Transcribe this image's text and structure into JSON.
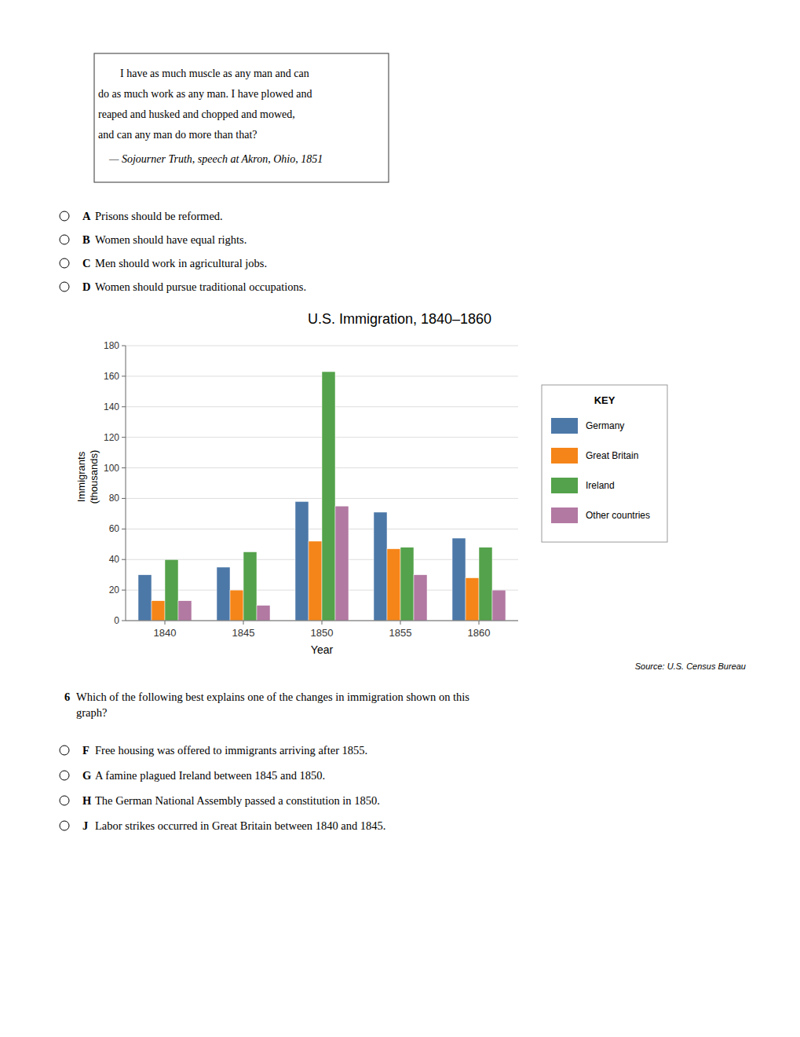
{
  "quote_lines": [
    "        I have as much muscle as any man and can",
    "do as much work as any man. I have plowed and",
    "reaped and husked and chopped and mowed,",
    "and can any man do more than that?"
  ],
  "quote_attribution": "    — Sojourner Truth, speech at Akron, Ohio, 1851",
  "choices_1": [
    {
      "letter": "A",
      "text": "Prisons should be reformed."
    },
    {
      "letter": "B",
      "text": "Women should have equal rights."
    },
    {
      "letter": "C",
      "text": "Men should work in agricultural jobs."
    },
    {
      "letter": "D",
      "text": "Women should pursue traditional occupations."
    }
  ],
  "question_number": "6",
  "question": "Which of the following best explains one of the changes in immigration shown on this\ngraph?",
  "choices_2": [
    {
      "letter": "F",
      "text": "Free housing was offered to immigrants arriving after 1855."
    },
    {
      "letter": "G",
      "text": "A famine plagued Ireland between 1845 and 1850."
    },
    {
      "letter": "H",
      "text": "The German National Assembly passed a constitution in 1850."
    },
    {
      "letter": "J",
      "text": "Labor strikes occurred in Great Britain between 1840 and 1845."
    }
  ],
  "chart_data": {
    "type": "bar",
    "title": "U.S. Immigration, 1840–1860",
    "categories": [
      "1840",
      "1845",
      "1850",
      "1855",
      "1860"
    ],
    "series": [
      {
        "name": "Germany",
        "color": "#4c78a8",
        "values": [
          30,
          35,
          78,
          71,
          54
        ]
      },
      {
        "name": "Great Britain",
        "color": "#f58518",
        "values": [
          13,
          20,
          52,
          47,
          28
        ]
      },
      {
        "name": "Ireland",
        "color": "#54a24b",
        "values": [
          40,
          45,
          163,
          48,
          48
        ]
      },
      {
        "name": "Other countries",
        "color": "#b279a2",
        "values": [
          13,
          10,
          75,
          30,
          20
        ]
      }
    ],
    "ylabel": "Immigrants\n(thousands)",
    "xlabel": "Year",
    "ylim": [
      0,
      180
    ],
    "yticks": [
      0,
      20,
      40,
      60,
      80,
      100,
      120,
      140,
      160,
      180
    ],
    "grid": true,
    "legend": "right",
    "legend_title": "KEY",
    "source": "Source: U.S. Census Bureau"
  }
}
